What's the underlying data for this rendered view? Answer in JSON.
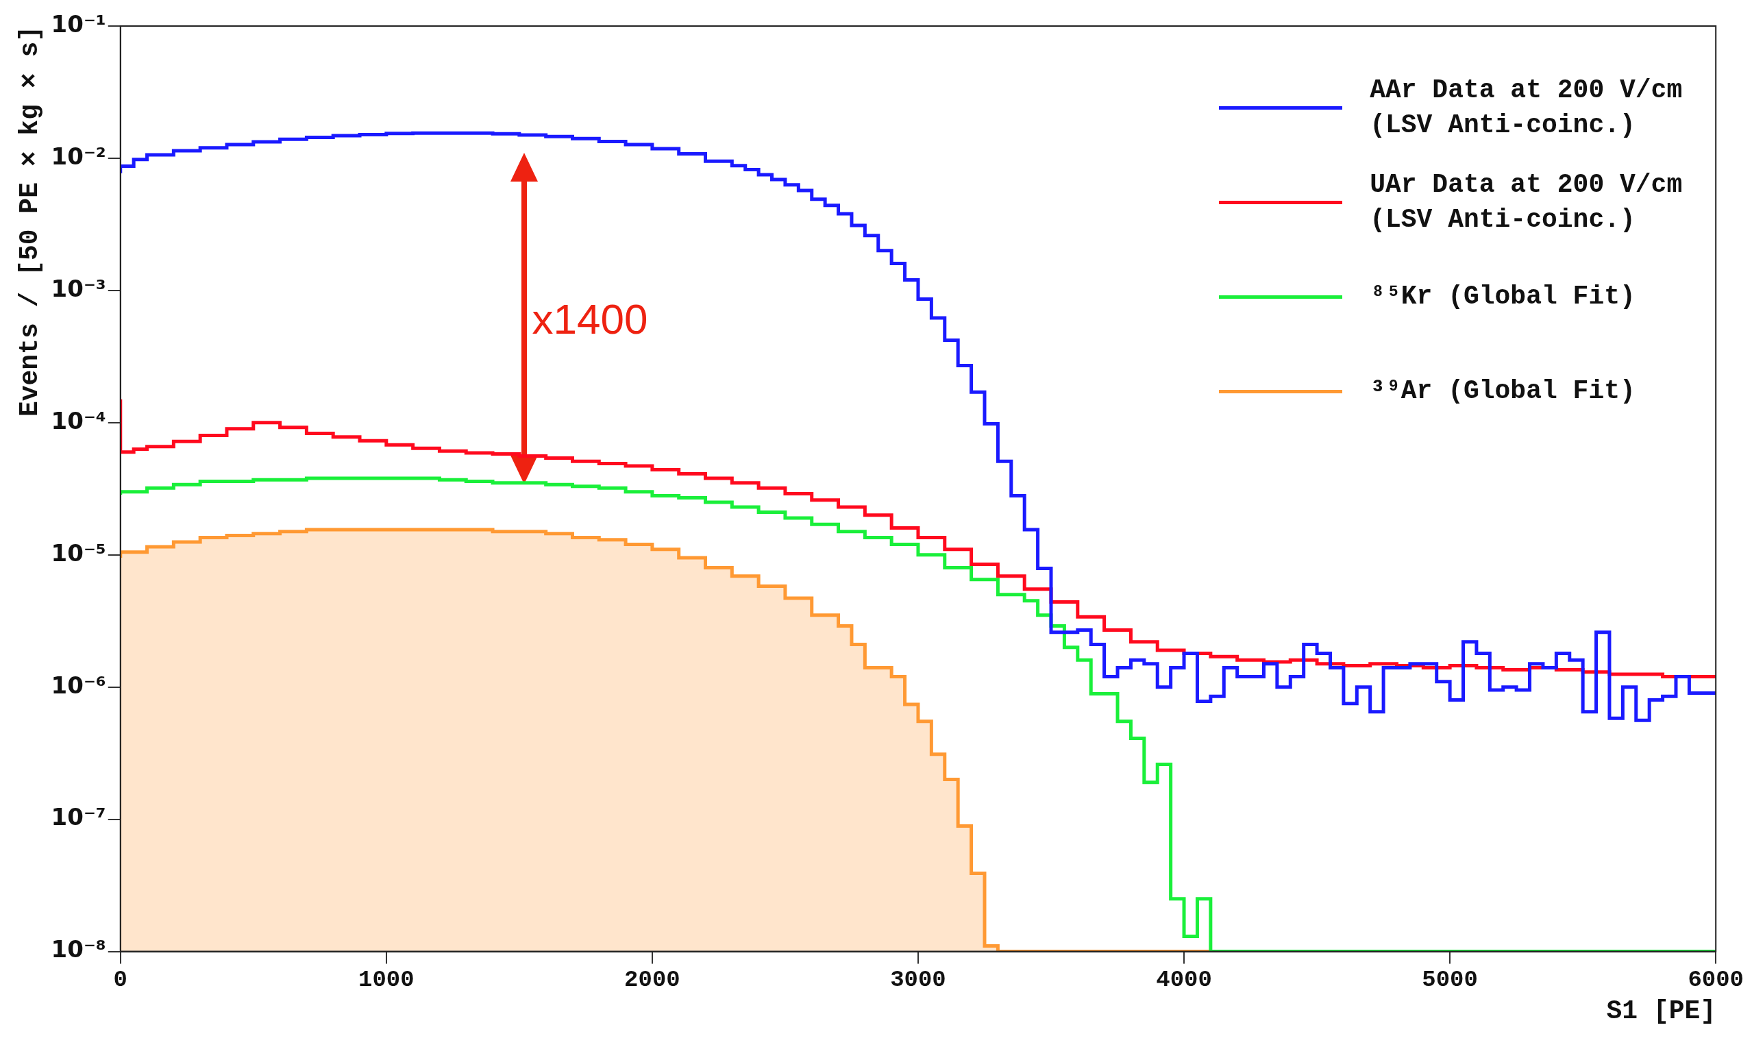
{
  "chart_data": {
    "type": "step",
    "xlabel": "S1 [PE]",
    "ylabel": "Events / [50 PE × kg × s]",
    "log": "y",
    "grid": false,
    "legend": "top right",
    "xlim": [
      0,
      6000
    ],
    "xticks": [
      0,
      1000,
      2000,
      3000,
      4000,
      5000,
      6000
    ],
    "ylim": [
      1e-08,
      0.1
    ],
    "yticks": [
      {
        "value": 1e-08,
        "label": "10⁻⁸"
      },
      {
        "value": 1e-07,
        "label": "10⁻⁷"
      },
      {
        "value": 1e-06,
        "label": "10⁻⁶"
      },
      {
        "value": 1e-05,
        "label": "10⁻⁵"
      },
      {
        "value": 0.0001,
        "label": "10⁻⁴"
      },
      {
        "value": 0.001,
        "label": "10⁻³"
      },
      {
        "value": 0.01,
        "label": "10⁻²"
      },
      {
        "value": 0.1,
        "label": "10⁻¹"
      }
    ],
    "annotations": [
      "x1400"
    ],
    "series": [
      {
        "name": "AAr Data at 200 V/cm (LSV Anti-coinc.)",
        "color": "#1a1aff",
        "x": [
          0,
          50,
          100,
          200,
          300,
          400,
          500,
          600,
          700,
          800,
          900,
          1000,
          1100,
          1200,
          1300,
          1400,
          1500,
          1600,
          1700,
          1800,
          1900,
          2000,
          2100,
          2200,
          2300,
          2350,
          2400,
          2450,
          2500,
          2550,
          2600,
          2650,
          2700,
          2750,
          2800,
          2850,
          2900,
          2950,
          3000,
          3050,
          3100,
          3150,
          3200,
          3250,
          3300,
          3350,
          3400,
          3450,
          3500,
          3550,
          3600,
          3650,
          3700,
          3750,
          3800,
          3850,
          3900,
          3950,
          4000,
          4050,
          4100,
          4150,
          4200,
          4250,
          4300,
          4350,
          4400,
          4450,
          4500,
          4550,
          4600,
          4650,
          4700,
          4750,
          4800,
          4850,
          4900,
          4950,
          5000,
          5050,
          5100,
          5150,
          5200,
          5250,
          5300,
          5350,
          5400,
          5450,
          5500,
          5550,
          5600,
          5650,
          5700,
          5750,
          5800,
          5850,
          5900,
          5950,
          6000
        ],
        "values": [
          0.0077,
          0.0087,
          0.0098,
          0.0106,
          0.0114,
          0.012,
          0.0127,
          0.0133,
          0.0139,
          0.0144,
          0.0148,
          0.0151,
          0.0154,
          0.0155,
          0.0155,
          0.0155,
          0.0153,
          0.015,
          0.0146,
          0.0141,
          0.0134,
          0.0127,
          0.0118,
          0.0108,
          0.0095,
          0.0088,
          0.0082,
          0.0075,
          0.0069,
          0.0063,
          0.0057,
          0.0049,
          0.0044,
          0.0038,
          0.0031,
          0.0026,
          0.002,
          0.0016,
          0.0012,
          0.00086,
          0.00062,
          0.00042,
          0.00027,
          0.00017,
          9.8e-05,
          5.1e-05,
          2.8e-05,
          1.55e-05,
          7.9e-06,
          2.6e-06,
          2.6e-06,
          2.7e-06,
          2.1e-06,
          1.2e-06,
          1.4e-06,
          1.6e-06,
          1.5e-06,
          1e-06,
          1.4e-06,
          1.8e-06,
          7.8e-07,
          8.5e-07,
          1.4e-06,
          1.2e-06,
          1.2e-06,
          1.5e-06,
          1e-06,
          1.2e-06,
          2.1e-06,
          1.8e-06,
          1.4e-06,
          7.5e-07,
          1e-06,
          6.5e-07,
          1.4e-06,
          1.4e-06,
          1.5e-06,
          1.5e-06,
          1.1e-06,
          8e-07,
          2.2e-06,
          1.8e-06,
          9.5e-07,
          1e-06,
          9.5e-07,
          1.5e-06,
          1.4e-06,
          1.8e-06,
          1.6e-06,
          6.5e-07,
          2.6e-06,
          5.8e-07,
          1e-06,
          5.6e-07,
          8e-07,
          8.5e-07,
          1.2e-06,
          9e-07,
          9e-07
        ]
      },
      {
        "name": "UAr Data at 200 V/cm (LSV Anti-coinc.)",
        "color": "#ff0a1e",
        "x": [
          0,
          50,
          100,
          200,
          300,
          400,
          500,
          600,
          700,
          800,
          900,
          1000,
          1100,
          1200,
          1300,
          1400,
          1500,
          1600,
          1700,
          1800,
          1900,
          2000,
          2100,
          2200,
          2300,
          2400,
          2500,
          2600,
          2700,
          2800,
          2900,
          3000,
          3100,
          3200,
          3300,
          3400,
          3500,
          3600,
          3700,
          3800,
          3900,
          4000,
          4100,
          4200,
          4300,
          4400,
          4500,
          4600,
          4700,
          4800,
          4900,
          5000,
          5100,
          5200,
          5300,
          5400,
          5500,
          5600,
          5700,
          5800,
          5900,
          6000
        ],
        "values": [
          0.00015,
          6e-05,
          6.3e-05,
          6.6e-05,
          7.2e-05,
          8e-05,
          9e-05,
          0.0001,
          9.2e-05,
          8.3e-05,
          7.8e-05,
          7.3e-05,
          6.8e-05,
          6.4e-05,
          6.1e-05,
          5.9e-05,
          5.8e-05,
          5.6e-05,
          5.4e-05,
          5.1e-05,
          4.9e-05,
          4.7e-05,
          4.4e-05,
          4.1e-05,
          3.8e-05,
          3.5e-05,
          3.2e-05,
          2.9e-05,
          2.6e-05,
          2.3e-05,
          2e-05,
          1.6e-05,
          1.35e-05,
          1.1e-05,
          8.5e-06,
          6.9e-06,
          5.5e-06,
          4.4e-06,
          3.4e-06,
          2.7e-06,
          2.2e-06,
          1.9e-06,
          1.8e-06,
          1.7e-06,
          1.6e-06,
          1.55e-06,
          1.6e-06,
          1.5e-06,
          1.45e-06,
          1.5e-06,
          1.45e-06,
          1.4e-06,
          1.45e-06,
          1.4e-06,
          1.35e-06,
          1.4e-06,
          1.35e-06,
          1.3e-06,
          1.25e-06,
          1.25e-06,
          1.2e-06,
          1.2e-06
        ]
      },
      {
        "name": "⁸⁵Kr (Global Fit)",
        "color": "#1aef3a",
        "x": [
          0,
          100,
          200,
          300,
          400,
          500,
          600,
          700,
          800,
          900,
          1000,
          1100,
          1200,
          1300,
          1400,
          1500,
          1600,
          1700,
          1800,
          1900,
          2000,
          2100,
          2200,
          2300,
          2400,
          2500,
          2600,
          2700,
          2800,
          2900,
          3000,
          3100,
          3200,
          3300,
          3400,
          3450,
          3500,
          3550,
          3600,
          3650,
          3750,
          3800,
          3850,
          3900,
          3950,
          4000,
          4050,
          4100,
          4150,
          6000
        ],
        "values": [
          2.85e-05,
          3e-05,
          3.2e-05,
          3.4e-05,
          3.6e-05,
          3.6e-05,
          3.7e-05,
          3.7e-05,
          3.8e-05,
          3.8e-05,
          3.8e-05,
          3.8e-05,
          3.8e-05,
          3.7e-05,
          3.6e-05,
          3.5e-05,
          3.5e-05,
          3.4e-05,
          3.3e-05,
          3.2e-05,
          3e-05,
          2.8e-05,
          2.7e-05,
          2.5e-05,
          2.3e-05,
          2.1e-05,
          1.9e-05,
          1.7e-05,
          1.5e-05,
          1.35e-05,
          1.2e-05,
          1e-05,
          8e-06,
          6.5e-06,
          5e-06,
          4.5e-06,
          3.5e-06,
          2.9e-06,
          2e-06,
          1.6e-06,
          8.9e-07,
          5.5e-07,
          4.1e-07,
          1.9e-07,
          2.6e-07,
          2.5e-08,
          1.3e-08,
          2.5e-08,
          1e-08,
          1e-08
        ]
      },
      {
        "name": "³⁹Ar (Global Fit)",
        "type": "area",
        "color": "#ff9933",
        "x": [
          0,
          100,
          200,
          300,
          400,
          500,
          600,
          700,
          800,
          900,
          1000,
          1100,
          1200,
          1300,
          1400,
          1500,
          1600,
          1700,
          1800,
          1900,
          2000,
          2100,
          2200,
          2300,
          2400,
          2500,
          2600,
          2700,
          2750,
          2800,
          2900,
          2950,
          3000,
          3050,
          3100,
          3150,
          3200,
          3250,
          3300,
          3350,
          4150
        ],
        "values": [
          9.5e-06,
          1.05e-05,
          1.15e-05,
          1.25e-05,
          1.35e-05,
          1.4e-05,
          1.45e-05,
          1.5e-05,
          1.55e-05,
          1.55e-05,
          1.55e-05,
          1.55e-05,
          1.55e-05,
          1.55e-05,
          1.55e-05,
          1.5e-05,
          1.5e-05,
          1.45e-05,
          1.35e-05,
          1.3e-05,
          1.2e-05,
          1.1e-05,
          9.5e-06,
          8e-06,
          6.9e-06,
          5.8e-06,
          4.7e-06,
          3.5e-06,
          2.9e-06,
          2.1e-06,
          1.4e-06,
          1.2e-06,
          7.4e-07,
          5.5e-07,
          3.1e-07,
          2e-07,
          8.9e-08,
          3.9e-08,
          1.1e-08,
          1e-08,
          1e-08
        ]
      }
    ]
  }
}
